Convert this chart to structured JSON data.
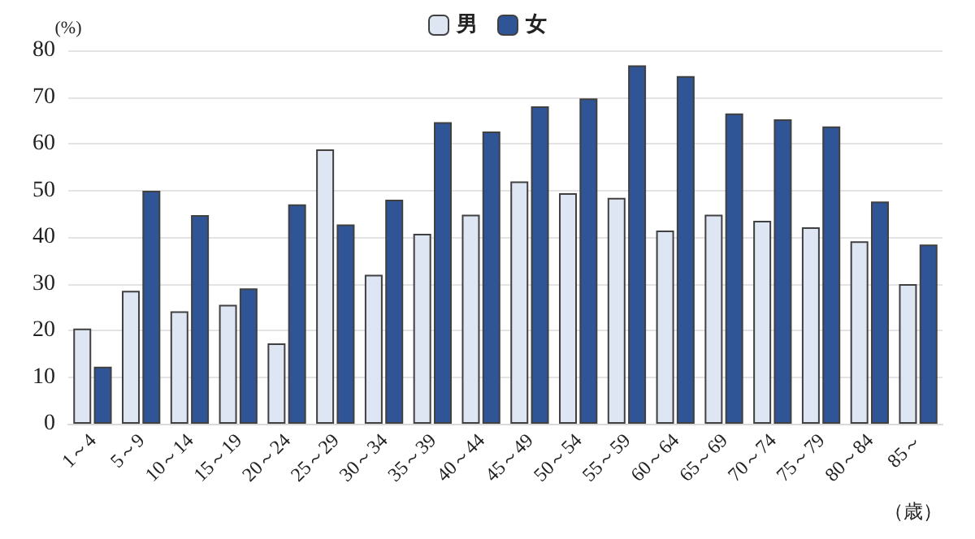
{
  "chart_data": {
    "type": "bar",
    "ylabel": "(%)",
    "xlabel": "（歳）",
    "categories": [
      "1～4",
      "5～9",
      "10～14",
      "15～19",
      "20～24",
      "25～29",
      "30～34",
      "35～39",
      "40～44",
      "45～49",
      "50～54",
      "55～59",
      "60～64",
      "65～69",
      "70～74",
      "75～79",
      "80～84",
      "85～"
    ],
    "series": [
      {
        "name": "男",
        "color": "#dde6f2",
        "values": [
          20.4,
          28.5,
          24.1,
          25.5,
          17.2,
          58.8,
          31.9,
          40.7,
          44.8,
          51.9,
          49.4,
          48.4,
          41.4,
          44.8,
          43.5,
          42.1,
          39.1,
          29.9
        ]
      },
      {
        "name": "女",
        "color": "#2f5597",
        "values": [
          12.2,
          49.9,
          44.7,
          29.0,
          47.0,
          42.7,
          48.0,
          64.6,
          62.6,
          68.0,
          69.7,
          76.8,
          74.5,
          66.5,
          65.2,
          63.7,
          47.6,
          38.4
        ]
      }
    ],
    "ylim": [
      0,
      80
    ],
    "yticks": [
      0,
      10,
      20,
      30,
      40,
      50,
      60,
      70,
      80
    ],
    "grid": "y",
    "legend": "top"
  }
}
